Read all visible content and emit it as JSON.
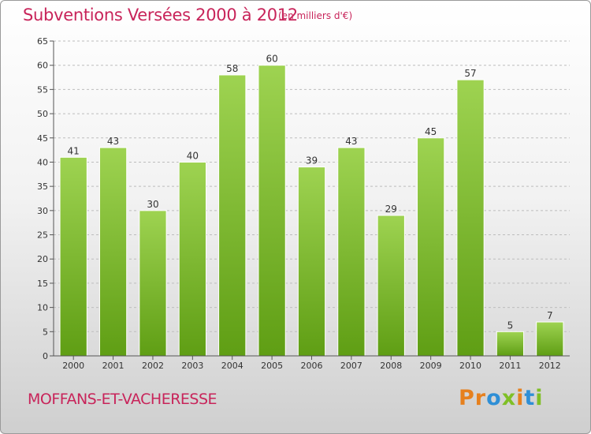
{
  "header": {
    "title": "Subventions Versées 2000 à 2012",
    "unit": "(en milliers d'€)"
  },
  "footer": {
    "town": "MOFFANS-ET-VACHERESSE",
    "logo": {
      "text": "Proxiti",
      "letters": [
        {
          "char": "P",
          "color": "#e6801e"
        },
        {
          "char": "r",
          "color": "#e6801e"
        },
        {
          "char": "o",
          "color": "#2f8fd6"
        },
        {
          "char": "x",
          "color": "#7fbf26"
        },
        {
          "char": "i",
          "color": "#e6801e"
        },
        {
          "char": "t",
          "color": "#2f8fd6"
        },
        {
          "char": "i",
          "color": "#7fbf26"
        }
      ]
    }
  },
  "colors": {
    "accent": "#c8245a",
    "bar_top": "#9ed351",
    "bar_bottom": "#5f9e14",
    "grid": "#bdbdbd"
  },
  "chart_data": {
    "type": "bar",
    "title": "Subventions Versées 2000 à 2012",
    "subtitle": "(en milliers d'€)",
    "categories": [
      "2000",
      "2001",
      "2002",
      "2003",
      "2004",
      "2005",
      "2006",
      "2007",
      "2008",
      "2009",
      "2010",
      "2011",
      "2012"
    ],
    "values": [
      41,
      43,
      30,
      40,
      58,
      60,
      39,
      43,
      29,
      45,
      57,
      5,
      7
    ],
    "ylim": [
      0,
      65
    ],
    "yticks": [
      0,
      5,
      10,
      15,
      20,
      25,
      30,
      35,
      40,
      45,
      50,
      55,
      60,
      65
    ],
    "grid": "horizontal dashed",
    "data_labels": true,
    "xlabel": "",
    "ylabel": ""
  }
}
